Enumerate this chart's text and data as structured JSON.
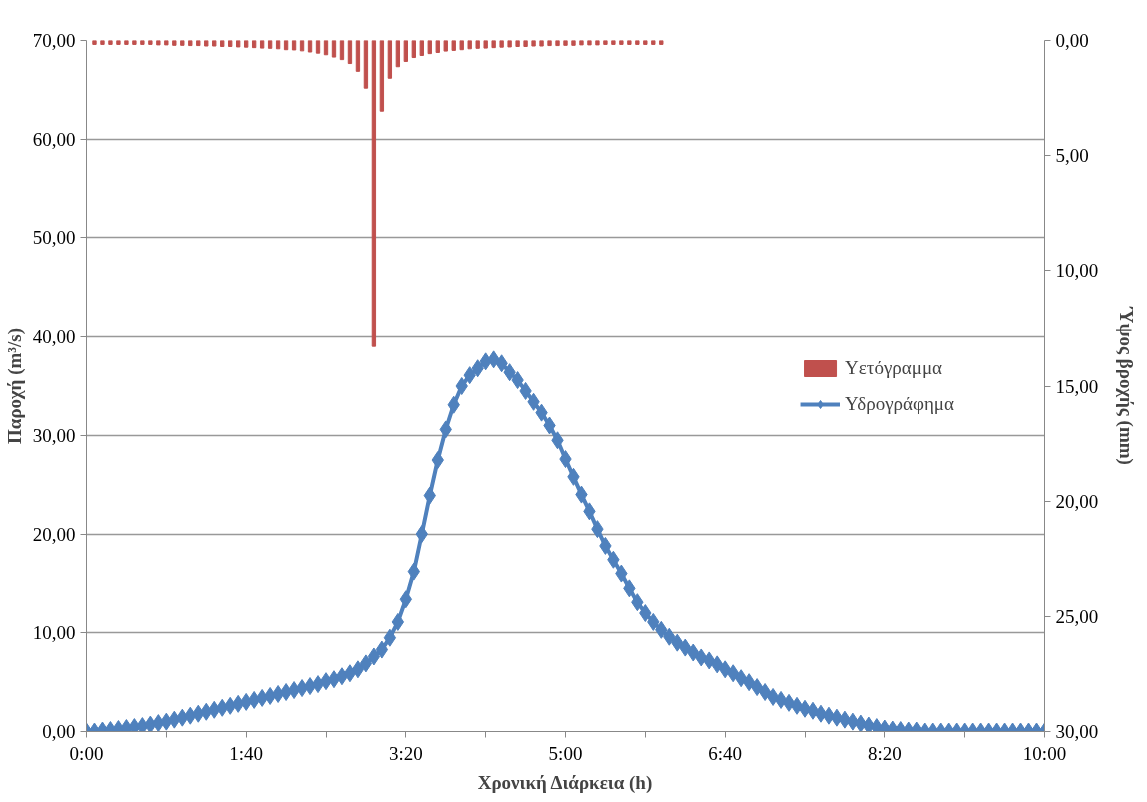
{
  "chart_data": {
    "type": "line",
    "xlabel": "Χρονική Διάρκεια (h)",
    "ylabel": "Παροχή (m³/s)",
    "y2label": "Ύψος βροχής (mm)",
    "xlim": [
      0,
      10
    ],
    "ylim": [
      0,
      70
    ],
    "y2lim": [
      30,
      0
    ],
    "xticks": [
      {
        "value": 0,
        "label": "0:00"
      },
      {
        "value": 0.8333,
        "label": null
      },
      {
        "value": 1.6667,
        "label": "1:40"
      },
      {
        "value": 2.5,
        "label": null
      },
      {
        "value": 3.3333,
        "label": "3:20"
      },
      {
        "value": 4.1667,
        "label": null
      },
      {
        "value": 5,
        "label": "5:00"
      },
      {
        "value": 5.8333,
        "label": null
      },
      {
        "value": 6.6667,
        "label": "6:40"
      },
      {
        "value": 7.5,
        "label": null
      },
      {
        "value": 8.3333,
        "label": "8:20"
      },
      {
        "value": 9.1667,
        "label": null
      },
      {
        "value": 10,
        "label": "10:00"
      }
    ],
    "yticks": [
      {
        "value": 0,
        "label": "0,00"
      },
      {
        "value": 10,
        "label": "10,00"
      },
      {
        "value": 20,
        "label": "20,00"
      },
      {
        "value": 30,
        "label": "30,00"
      },
      {
        "value": 40,
        "label": "40,00"
      },
      {
        "value": 50,
        "label": "50,00"
      },
      {
        "value": 60,
        "label": "60,00"
      },
      {
        "value": 70,
        "label": "70,00"
      }
    ],
    "y2ticks": [
      {
        "value": 0,
        "label": "0,00"
      },
      {
        "value": 5,
        "label": "5,00"
      },
      {
        "value": 10,
        "label": "10,00"
      },
      {
        "value": 15,
        "label": "15,00"
      },
      {
        "value": 20,
        "label": "20,00"
      },
      {
        "value": 25,
        "label": "25,00"
      },
      {
        "value": 30,
        "label": "30,00"
      }
    ],
    "grid": "y",
    "legend": "right",
    "series": [
      {
        "name": "Υετόγραμμα",
        "type": "bar",
        "axis": "y2",
        "color": "#c0504d",
        "x": [
          0.0833,
          0.1667,
          0.25,
          0.3333,
          0.4167,
          0.5,
          0.5833,
          0.6667,
          0.75,
          0.8333,
          0.9167,
          1,
          1.0833,
          1.1667,
          1.25,
          1.3333,
          1.4167,
          1.5,
          1.5833,
          1.6667,
          1.75,
          1.8333,
          1.9167,
          2,
          2.0833,
          2.1667,
          2.25,
          2.3333,
          2.4167,
          2.5,
          2.5833,
          2.6667,
          2.75,
          2.8333,
          2.9167,
          3,
          3.0833,
          3.1667,
          3.25,
          3.3333,
          3.4167,
          3.5,
          3.5833,
          3.6667,
          3.75,
          3.8333,
          3.9167,
          4,
          4.0833,
          4.1667,
          4.25,
          4.3333,
          4.4167,
          4.5,
          4.5833,
          4.6667,
          4.75,
          4.8333,
          4.9167,
          5,
          5.0833,
          5.1667,
          5.25,
          5.3333,
          5.4167,
          5.5,
          5.5833,
          5.6667,
          5.75,
          5.8333,
          5.9167,
          6
        ],
        "values": [
          0.17,
          0.17,
          0.17,
          0.17,
          0.17,
          0.17,
          0.17,
          0.17,
          0.19,
          0.19,
          0.21,
          0.21,
          0.22,
          0.22,
          0.24,
          0.24,
          0.26,
          0.26,
          0.28,
          0.29,
          0.31,
          0.33,
          0.34,
          0.36,
          0.4,
          0.41,
          0.45,
          0.5,
          0.55,
          0.62,
          0.72,
          0.83,
          1.0,
          1.34,
          2.07,
          13.27,
          3.07,
          1.64,
          1.14,
          0.91,
          0.74,
          0.65,
          0.57,
          0.52,
          0.46,
          0.43,
          0.4,
          0.36,
          0.34,
          0.33,
          0.31,
          0.29,
          0.28,
          0.26,
          0.26,
          0.24,
          0.24,
          0.22,
          0.22,
          0.21,
          0.21,
          0.19,
          0.19,
          0.19,
          0.17,
          0.17,
          0.17,
          0.17,
          0.17,
          0.17,
          0.17,
          0.17
        ]
      },
      {
        "name": "Υδρογράφημα",
        "color": "#4f81bd",
        "marker": "diamond",
        "line_style": "solid",
        "x": [
          0,
          0.0833,
          0.1667,
          0.25,
          0.3333,
          0.4167,
          0.5,
          0.5833,
          0.6667,
          0.75,
          0.8333,
          0.9167,
          1,
          1.0833,
          1.1667,
          1.25,
          1.3333,
          1.4167,
          1.5,
          1.5833,
          1.6667,
          1.75,
          1.8333,
          1.9167,
          2,
          2.0833,
          2.1667,
          2.25,
          2.3333,
          2.4167,
          2.5,
          2.5833,
          2.6667,
          2.75,
          2.8333,
          2.9167,
          3,
          3.0833,
          3.1667,
          3.25,
          3.3333,
          3.4167,
          3.5,
          3.5833,
          3.6667,
          3.75,
          3.8333,
          3.9167,
          4,
          4.0833,
          4.1667,
          4.25,
          4.3333,
          4.4167,
          4.5,
          4.5833,
          4.6667,
          4.75,
          4.8333,
          4.9167,
          5,
          5.0833,
          5.1667,
          5.25,
          5.3333,
          5.4167,
          5.5,
          5.5833,
          5.6667,
          5.75,
          5.8333,
          5.9167,
          6,
          6.0833,
          6.1667,
          6.25,
          6.3333,
          6.4167,
          6.5,
          6.5833,
          6.6667,
          6.75,
          6.8333,
          6.9167,
          7,
          7.0833,
          7.1667,
          7.25,
          7.3333,
          7.4167,
          7.5,
          7.5833,
          7.6667,
          7.75,
          7.8333,
          7.9167,
          8,
          8.0833,
          8.1667,
          8.25,
          8.3333,
          8.4167,
          8.5,
          8.5833,
          8.6667,
          8.75,
          8.8333,
          8.9167,
          9,
          9.0833,
          9.1667,
          9.25,
          9.3333,
          9.4167,
          9.5,
          9.5833,
          9.6667,
          9.75,
          9.8333,
          9.9167,
          10
        ],
        "values": [
          0,
          0.0,
          0.1,
          0.15,
          0.25,
          0.35,
          0.45,
          0.55,
          0.7,
          0.85,
          1.0,
          1.2,
          1.4,
          1.6,
          1.8,
          2.0,
          2.2,
          2.4,
          2.6,
          2.8,
          3.0,
          3.2,
          3.4,
          3.6,
          3.8,
          4.0,
          4.2,
          4.4,
          4.6,
          4.8,
          5.1,
          5.3,
          5.6,
          5.9,
          6.3,
          6.9,
          7.6,
          8.3,
          9.5,
          11.1,
          13.4,
          16.2,
          20.0,
          23.9,
          27.5,
          30.6,
          33.1,
          35.0,
          36.1,
          36.8,
          37.5,
          37.7,
          37.3,
          36.4,
          35.6,
          34.5,
          33.4,
          32.3,
          31.0,
          29.5,
          27.6,
          25.8,
          24.0,
          22.3,
          20.5,
          18.8,
          17.4,
          16.0,
          14.5,
          13.1,
          12.0,
          11.1,
          10.3,
          9.6,
          9.0,
          8.5,
          8.0,
          7.5,
          7.2,
          6.8,
          6.3,
          5.9,
          5.4,
          5.0,
          4.5,
          4.0,
          3.5,
          3.2,
          2.9,
          2.6,
          2.3,
          2.1,
          1.8,
          1.6,
          1.4,
          1.2,
          1.0,
          0.8,
          0.6,
          0.45,
          0.3,
          0.2,
          0.15,
          0.1,
          0.1,
          0.0,
          0.0,
          0.0,
          0.0,
          0.0,
          0.0,
          0.0,
          0.0,
          0.0,
          0.0,
          0.0,
          0.0,
          0.0,
          0.0,
          0.0,
          0.0
        ]
      }
    ]
  }
}
